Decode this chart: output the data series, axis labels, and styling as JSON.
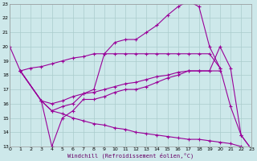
{
  "xlabel": "Windchill (Refroidissement éolien,°C)",
  "bg_color": "#cde8ea",
  "line_color": "#990099",
  "grid_color": "#aacccc",
  "xlim": [
    0,
    23
  ],
  "ylim": [
    13,
    23
  ],
  "yticks": [
    13,
    14,
    15,
    16,
    17,
    18,
    19,
    20,
    21,
    22,
    23
  ],
  "xticks": [
    0,
    1,
    2,
    3,
    4,
    5,
    6,
    7,
    8,
    9,
    10,
    11,
    12,
    13,
    14,
    15,
    16,
    17,
    18,
    19,
    20,
    21,
    22,
    23
  ],
  "lines": [
    {
      "x": [
        0,
        1,
        3,
        4,
        5,
        6,
        7,
        8,
        9,
        10,
        11,
        12,
        13,
        14,
        15,
        16,
        17,
        18,
        19,
        20,
        21,
        22,
        23
      ],
      "y": [
        20,
        18.3,
        16.2,
        15.5,
        15.8,
        16.0,
        16.7,
        17.0,
        19.5,
        20.3,
        20.5,
        20.5,
        21.0,
        21.5,
        22.2,
        22.8,
        23.2,
        22.8,
        20.0,
        18.5,
        15.8,
        13.8,
        12.8
      ]
    },
    {
      "x": [
        1,
        2,
        3,
        4,
        5,
        6,
        7,
        8,
        9,
        10,
        11,
        12,
        13,
        14,
        15,
        16,
        17,
        18,
        19,
        20
      ],
      "y": [
        18.3,
        18.5,
        18.6,
        18.8,
        19.0,
        19.2,
        19.3,
        19.5,
        19.5,
        19.5,
        19.5,
        19.5,
        19.5,
        19.5,
        19.5,
        19.5,
        19.5,
        19.5,
        19.5,
        18.5
      ]
    },
    {
      "x": [
        1,
        3,
        4,
        5,
        6,
        7,
        8,
        9,
        10,
        11,
        12,
        13,
        14,
        15,
        16,
        17,
        18,
        19,
        20
      ],
      "y": [
        18.3,
        16.2,
        16.0,
        16.2,
        16.5,
        16.7,
        16.8,
        17.0,
        17.2,
        17.4,
        17.5,
        17.7,
        17.9,
        18.0,
        18.2,
        18.3,
        18.3,
        18.3,
        18.3
      ]
    },
    {
      "x": [
        1,
        3,
        4,
        5,
        6,
        7,
        8,
        9,
        10,
        11,
        12,
        13,
        14,
        15,
        16,
        17,
        18,
        19,
        20,
        21,
        22,
        23
      ],
      "y": [
        18.3,
        16.2,
        13.0,
        15.0,
        15.5,
        16.3,
        16.3,
        16.5,
        16.8,
        17.0,
        17.0,
        17.2,
        17.5,
        17.8,
        18.0,
        18.3,
        18.3,
        18.3,
        20.0,
        18.5,
        13.8,
        12.8
      ]
    },
    {
      "x": [
        1,
        3,
        4,
        5,
        6,
        7,
        8,
        9,
        10,
        11,
        12,
        13,
        14,
        15,
        16,
        17,
        18,
        19,
        20,
        21,
        22,
        23
      ],
      "y": [
        18.3,
        16.2,
        15.5,
        15.3,
        15.0,
        14.8,
        14.6,
        14.5,
        14.3,
        14.2,
        14.0,
        13.9,
        13.8,
        13.7,
        13.6,
        13.5,
        13.5,
        13.4,
        13.3,
        13.2,
        13.0,
        12.8
      ]
    }
  ]
}
